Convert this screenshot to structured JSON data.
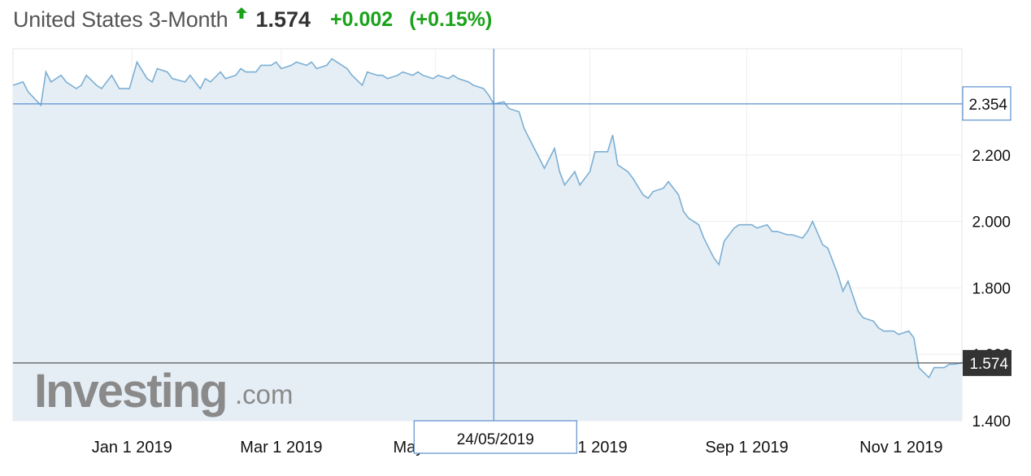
{
  "header": {
    "title": "United States 3-Month",
    "direction_icon": "up-arrow-icon",
    "price": "1.574",
    "change": "+0.002",
    "change_pct": "(+0.15%)",
    "positive_color": "#1aa31a"
  },
  "watermark": {
    "brand": "Investing",
    "suffix": ".com"
  },
  "crosshair": {
    "date_label": "24/05/2019",
    "value_label": "2.354",
    "date": "2019-05-24",
    "value": 2.354
  },
  "last_price_label": "1.574",
  "chart_data": {
    "type": "area",
    "title": "United States 3-Month",
    "ylim": [
      1.4,
      2.52
    ],
    "y_ticks": [
      "1.400",
      "1.600",
      "1.800",
      "2.000",
      "2.200"
    ],
    "x_ticks": [
      {
        "date": "2019-01-01",
        "label": "Jan 1 2019"
      },
      {
        "date": "2019-03-01",
        "label": "Mar 1 2019"
      },
      {
        "date": "2019-05-01",
        "label": "May 1 2019"
      },
      {
        "date": "2019-07-01",
        "label": "Jul 1 2019"
      },
      {
        "date": "2019-09-01",
        "label": "Sep 1 2019"
      },
      {
        "date": "2019-11-01",
        "label": "Nov 1 2019"
      }
    ],
    "grid": true,
    "line_color": "#7bafd4",
    "fill_color": "#e6eef5",
    "series": [
      {
        "x": [
          "2018-11-15",
          "2018-11-19",
          "2018-11-21",
          "2018-11-26",
          "2018-11-28",
          "2018-11-30",
          "2018-12-04",
          "2018-12-06",
          "2018-12-10",
          "2018-12-12",
          "2018-12-14",
          "2018-12-18",
          "2018-12-20",
          "2018-12-24",
          "2018-12-27",
          "2018-12-31",
          "2019-01-03",
          "2019-01-07",
          "2019-01-09",
          "2019-01-11",
          "2019-01-15",
          "2019-01-17",
          "2019-01-22",
          "2019-01-24",
          "2019-01-28",
          "2019-01-30",
          "2019-02-01",
          "2019-02-05",
          "2019-02-07",
          "2019-02-11",
          "2019-02-13",
          "2019-02-15",
          "2019-02-19",
          "2019-02-21",
          "2019-02-25",
          "2019-02-27",
          "2019-03-01",
          "2019-03-05",
          "2019-03-07",
          "2019-03-11",
          "2019-03-13",
          "2019-03-15",
          "2019-03-19",
          "2019-03-21",
          "2019-03-25",
          "2019-03-27",
          "2019-03-29",
          "2019-04-02",
          "2019-04-04",
          "2019-04-08",
          "2019-04-10",
          "2019-04-12",
          "2019-04-16",
          "2019-04-18",
          "2019-04-22",
          "2019-04-24",
          "2019-04-26",
          "2019-04-30",
          "2019-05-02",
          "2019-05-06",
          "2019-05-08",
          "2019-05-10",
          "2019-05-14",
          "2019-05-16",
          "2019-05-20",
          "2019-05-22",
          "2019-05-24",
          "2019-05-28",
          "2019-05-30",
          "2019-06-03",
          "2019-06-05",
          "2019-06-07",
          "2019-06-11",
          "2019-06-13",
          "2019-06-17",
          "2019-06-19",
          "2019-06-21",
          "2019-06-25",
          "2019-06-27",
          "2019-07-01",
          "2019-07-03",
          "2019-07-08",
          "2019-07-10",
          "2019-07-12",
          "2019-07-16",
          "2019-07-18",
          "2019-07-22",
          "2019-07-24",
          "2019-07-26",
          "2019-07-30",
          "2019-08-01",
          "2019-08-05",
          "2019-08-07",
          "2019-08-09",
          "2019-08-13",
          "2019-08-15",
          "2019-08-19",
          "2019-08-21",
          "2019-08-23",
          "2019-08-27",
          "2019-08-29",
          "2019-09-03",
          "2019-09-05",
          "2019-09-09",
          "2019-09-11",
          "2019-09-13",
          "2019-09-17",
          "2019-09-19",
          "2019-09-23",
          "2019-09-25",
          "2019-09-27",
          "2019-10-01",
          "2019-10-03",
          "2019-10-07",
          "2019-10-09",
          "2019-10-11",
          "2019-10-15",
          "2019-10-17",
          "2019-10-21",
          "2019-10-23",
          "2019-10-25",
          "2019-10-29",
          "2019-10-31",
          "2019-11-04",
          "2019-11-06",
          "2019-11-08",
          "2019-11-12",
          "2019-11-14",
          "2019-11-18",
          "2019-11-20",
          "2019-11-22",
          "2019-11-25"
        ],
        "values": [
          2.41,
          2.42,
          2.39,
          2.35,
          2.45,
          2.42,
          2.44,
          2.42,
          2.4,
          2.41,
          2.44,
          2.41,
          2.4,
          2.44,
          2.4,
          2.4,
          2.48,
          2.43,
          2.42,
          2.46,
          2.45,
          2.43,
          2.42,
          2.44,
          2.4,
          2.43,
          2.42,
          2.45,
          2.43,
          2.44,
          2.46,
          2.45,
          2.45,
          2.47,
          2.47,
          2.48,
          2.46,
          2.47,
          2.48,
          2.47,
          2.48,
          2.46,
          2.47,
          2.49,
          2.47,
          2.46,
          2.44,
          2.41,
          2.45,
          2.44,
          2.44,
          2.43,
          2.44,
          2.45,
          2.44,
          2.45,
          2.44,
          2.43,
          2.44,
          2.43,
          2.44,
          2.43,
          2.42,
          2.41,
          2.4,
          2.38,
          2.354,
          2.36,
          2.34,
          2.33,
          2.28,
          2.25,
          2.19,
          2.16,
          2.22,
          2.15,
          2.11,
          2.15,
          2.11,
          2.15,
          2.21,
          2.21,
          2.26,
          2.17,
          2.15,
          2.13,
          2.08,
          2.07,
          2.09,
          2.1,
          2.12,
          2.08,
          2.03,
          2.01,
          1.99,
          1.95,
          1.89,
          1.87,
          1.94,
          1.98,
          1.99,
          1.99,
          1.98,
          1.99,
          1.97,
          1.97,
          1.96,
          1.96,
          1.95,
          1.97,
          2.0,
          1.93,
          1.92,
          1.84,
          1.79,
          1.82,
          1.73,
          1.71,
          1.7,
          1.68,
          1.67,
          1.67,
          1.66,
          1.67,
          1.65,
          1.56,
          1.53,
          1.56,
          1.56,
          1.57,
          1.57,
          1.574
        ]
      }
    ]
  }
}
